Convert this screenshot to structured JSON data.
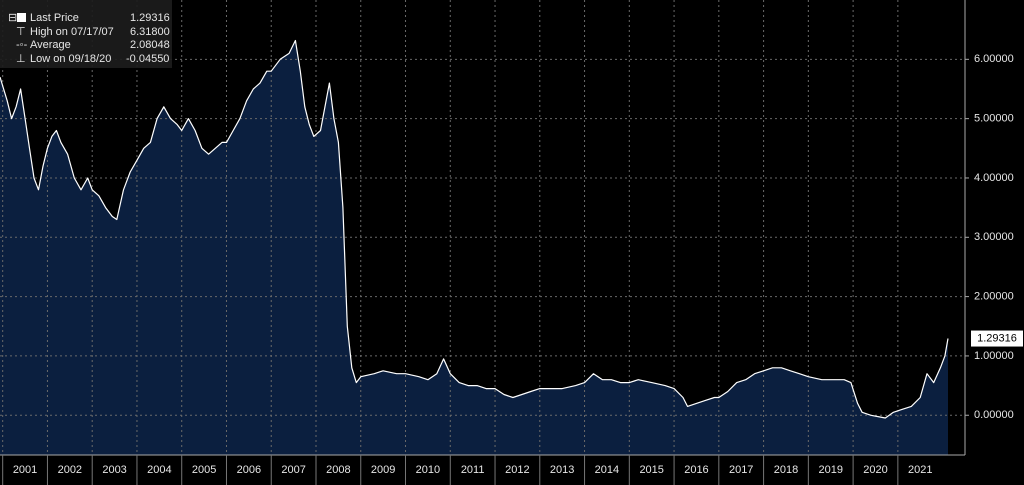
{
  "chart_data": {
    "type": "area",
    "legend": [
      {
        "label": "Last Price",
        "value": "1.29316"
      },
      {
        "label": "High on 07/17/07",
        "value": "6.31800"
      },
      {
        "label": "Average",
        "value": "2.08048"
      },
      {
        "label": "Low on 09/18/20",
        "value": "-0.04550"
      }
    ],
    "last_value": 1.29316,
    "line_color": "#ffffff",
    "fill_color": "#0b1f3f",
    "grid": true,
    "xlim": [
      2000.94,
      2022.5
    ],
    "ylim": [
      -0.67,
      7.0
    ],
    "xticks": [
      {
        "value": 2001,
        "label": "2001"
      },
      {
        "value": 2002,
        "label": "2002"
      },
      {
        "value": 2003,
        "label": "2003"
      },
      {
        "value": 2004,
        "label": "2004"
      },
      {
        "value": 2005,
        "label": "2005"
      },
      {
        "value": 2006,
        "label": "2006"
      },
      {
        "value": 2007,
        "label": "2007"
      },
      {
        "value": 2008,
        "label": "2008"
      },
      {
        "value": 2009,
        "label": "2009"
      },
      {
        "value": 2010,
        "label": "2010"
      },
      {
        "value": 2011,
        "label": "2011"
      },
      {
        "value": 2012,
        "label": "2012"
      },
      {
        "value": 2013,
        "label": "2013"
      },
      {
        "value": 2014,
        "label": "2014"
      },
      {
        "value": 2015,
        "label": "2015"
      },
      {
        "value": 2016,
        "label": "2016"
      },
      {
        "value": 2017,
        "label": "2017"
      },
      {
        "value": 2018,
        "label": "2018"
      },
      {
        "value": 2019,
        "label": "2019"
      },
      {
        "value": 2020,
        "label": "2020"
      },
      {
        "value": 2021,
        "label": "2021"
      }
    ],
    "yticks": [
      {
        "value": 0,
        "label": "0.00000"
      },
      {
        "value": 1,
        "label": "1.00000"
      },
      {
        "value": 2,
        "label": "2.00000"
      },
      {
        "value": 3,
        "label": "3.00000"
      },
      {
        "value": 4,
        "label": "4.00000"
      },
      {
        "value": 5,
        "label": "5.00000"
      },
      {
        "value": 6,
        "label": "6.00000"
      }
    ],
    "x": [
      2000.94,
      2001.1,
      2001.2,
      2001.3,
      2001.4,
      2001.5,
      2001.6,
      2001.7,
      2001.8,
      2001.9,
      2002.0,
      2002.1,
      2002.2,
      2002.3,
      2002.45,
      2002.6,
      2002.75,
      2002.9,
      2003.0,
      2003.15,
      2003.3,
      2003.45,
      2003.55,
      2003.7,
      2003.85,
      2004.0,
      2004.15,
      2004.3,
      2004.45,
      2004.6,
      2004.75,
      2004.9,
      2005.0,
      2005.15,
      2005.3,
      2005.45,
      2005.6,
      2005.75,
      2005.9,
      2006.0,
      2006.15,
      2006.3,
      2006.45,
      2006.6,
      2006.75,
      2006.9,
      2007.0,
      2007.2,
      2007.4,
      2007.54,
      2007.65,
      2007.75,
      2007.85,
      2007.95,
      2008.1,
      2008.3,
      2008.4,
      2008.5,
      2008.6,
      2008.7,
      2008.8,
      2008.9,
      2009.0,
      2009.3,
      2009.5,
      2009.8,
      2010.0,
      2010.3,
      2010.5,
      2010.7,
      2010.85,
      2011.0,
      2011.2,
      2011.4,
      2011.6,
      2011.8,
      2012.0,
      2012.2,
      2012.4,
      2012.6,
      2012.8,
      2013.0,
      2013.2,
      2013.5,
      2013.8,
      2014.0,
      2014.2,
      2014.4,
      2014.6,
      2014.8,
      2015.0,
      2015.2,
      2015.5,
      2015.8,
      2016.0,
      2016.2,
      2016.3,
      2016.5,
      2016.7,
      2016.9,
      2017.0,
      2017.2,
      2017.4,
      2017.6,
      2017.8,
      2018.0,
      2018.2,
      2018.4,
      2018.6,
      2018.8,
      2019.0,
      2019.3,
      2019.6,
      2019.8,
      2019.95,
      2020.1,
      2020.2,
      2020.4,
      2020.6,
      2020.72,
      2020.9,
      2021.1,
      2021.3,
      2021.5,
      2021.65,
      2021.8,
      2021.95,
      2022.05,
      2022.12
    ],
    "values": [
      5.7,
      5.3,
      5.0,
      5.2,
      5.5,
      5.0,
      4.5,
      4.0,
      3.8,
      4.2,
      4.5,
      4.7,
      4.8,
      4.6,
      4.4,
      4.0,
      3.8,
      4.0,
      3.8,
      3.7,
      3.5,
      3.35,
      3.3,
      3.8,
      4.1,
      4.3,
      4.5,
      4.6,
      5.0,
      5.2,
      5.0,
      4.9,
      4.8,
      5.0,
      4.8,
      4.5,
      4.4,
      4.5,
      4.6,
      4.6,
      4.8,
      5.0,
      5.3,
      5.5,
      5.6,
      5.8,
      5.8,
      6.0,
      6.1,
      6.318,
      5.8,
      5.2,
      4.9,
      4.7,
      4.8,
      5.6,
      5.0,
      4.6,
      3.5,
      1.5,
      0.8,
      0.55,
      0.65,
      0.7,
      0.75,
      0.7,
      0.7,
      0.65,
      0.6,
      0.7,
      0.95,
      0.7,
      0.55,
      0.5,
      0.5,
      0.45,
      0.45,
      0.35,
      0.3,
      0.35,
      0.4,
      0.45,
      0.45,
      0.45,
      0.5,
      0.55,
      0.7,
      0.6,
      0.6,
      0.55,
      0.55,
      0.6,
      0.55,
      0.5,
      0.45,
      0.3,
      0.15,
      0.2,
      0.25,
      0.3,
      0.3,
      0.4,
      0.55,
      0.6,
      0.7,
      0.75,
      0.8,
      0.8,
      0.75,
      0.7,
      0.65,
      0.6,
      0.6,
      0.6,
      0.55,
      0.2,
      0.05,
      0.0,
      -0.03,
      -0.0455,
      0.05,
      0.1,
      0.15,
      0.3,
      0.7,
      0.55,
      0.8,
      1.0,
      1.29316
    ]
  }
}
